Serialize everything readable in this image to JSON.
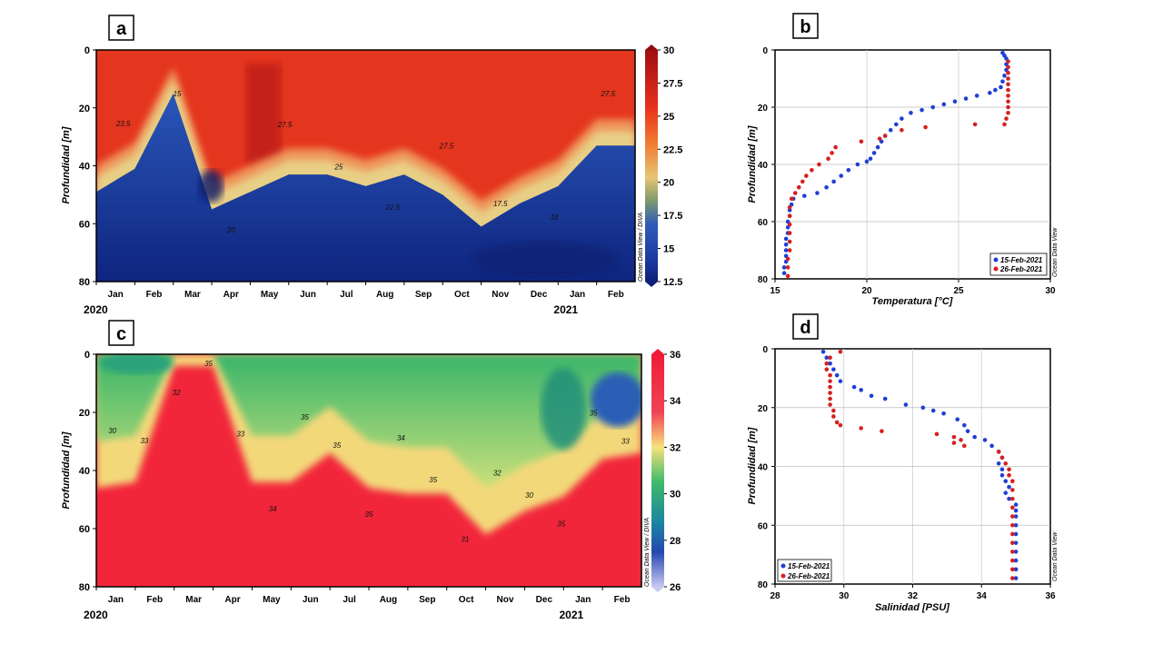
{
  "chart_data": [
    {
      "id": "a",
      "type": "heatmap",
      "panel_label": "a",
      "ylabel": "Profundidad [m]",
      "y_ticks": [
        "0",
        "20",
        "40",
        "60",
        "80"
      ],
      "ylim": [
        0,
        80
      ],
      "x_ticks": [
        "Jan",
        "Feb",
        "Mar",
        "Apr",
        "May",
        "Jun",
        "Jul",
        "Aug",
        "Sep",
        "Oct",
        "Nov",
        "Dec",
        "Jan",
        "Feb"
      ],
      "year_labels": [
        "2020",
        "2021"
      ],
      "colorbar_ticks": [
        "30",
        "27.5",
        "25",
        "22.5",
        "20",
        "17.5",
        "15",
        "12.5"
      ],
      "colorbar_range": [
        12.5,
        30
      ],
      "contour_labels": [
        "23.5",
        "15",
        "20",
        "27.5",
        "25",
        "22.5",
        "27.5",
        "17.5",
        "18",
        "27.5"
      ],
      "watermark": "Ocean Data View / DIVA",
      "thermocline_depth_by_month": [
        46,
        38,
        12,
        52,
        46,
        40,
        40,
        44,
        40,
        47,
        58,
        50,
        44,
        30,
        30
      ]
    },
    {
      "id": "c",
      "type": "heatmap",
      "panel_label": "c",
      "ylabel": "Profundidad [m]",
      "y_ticks": [
        "0",
        "20",
        "40",
        "60",
        "80"
      ],
      "ylim": [
        0,
        80
      ],
      "x_ticks": [
        "Jan",
        "Feb",
        "Mar",
        "Apr",
        "May",
        "Jun",
        "Jul",
        "Aug",
        "Sep",
        "Oct",
        "Nov",
        "Dec",
        "Jan",
        "Feb"
      ],
      "year_labels": [
        "2020",
        "2021"
      ],
      "colorbar_ticks": [
        "36",
        "34",
        "32",
        "30",
        "28",
        "26"
      ],
      "colorbar_range": [
        26,
        36
      ],
      "contour_labels": [
        "30",
        "33",
        "32",
        "35",
        "33",
        "34",
        "35",
        "35",
        "35",
        "34",
        "35",
        "31",
        "32",
        "30",
        "35",
        "35",
        "33"
      ],
      "watermark": "Ocean Data View / DIVA",
      "halocline_depth_by_month": [
        42,
        40,
        0,
        0,
        40,
        40,
        30,
        42,
        44,
        44,
        58,
        50,
        45,
        32,
        30
      ]
    },
    {
      "id": "b",
      "type": "scatter",
      "panel_label": "b",
      "xlabel": "Temperatura [°C]",
      "ylabel": "Profundidad [m]",
      "x_ticks": [
        "15",
        "20",
        "25",
        "30"
      ],
      "y_ticks": [
        "0",
        "20",
        "40",
        "60",
        "80"
      ],
      "xlim": [
        15,
        30
      ],
      "ylim": [
        0,
        80
      ],
      "watermark": "Ocean Data View",
      "series": [
        {
          "name": "15-Feb-2021",
          "color": "#1f3fd6",
          "points": [
            [
              27.4,
              1
            ],
            [
              27.5,
              2
            ],
            [
              27.6,
              3
            ],
            [
              27.6,
              5
            ],
            [
              27.6,
              7
            ],
            [
              27.5,
              9
            ],
            [
              27.4,
              11
            ],
            [
              27.3,
              13
            ],
            [
              27.0,
              14
            ],
            [
              26.7,
              15
            ],
            [
              26.0,
              16
            ],
            [
              25.4,
              17
            ],
            [
              24.8,
              18
            ],
            [
              24.2,
              19
            ],
            [
              23.6,
              20
            ],
            [
              23.0,
              21
            ],
            [
              22.4,
              22
            ],
            [
              21.9,
              24
            ],
            [
              21.6,
              26
            ],
            [
              21.3,
              28
            ],
            [
              21.0,
              30
            ],
            [
              20.8,
              32
            ],
            [
              20.6,
              34
            ],
            [
              20.4,
              36
            ],
            [
              20.2,
              38
            ],
            [
              20.0,
              39
            ],
            [
              19.5,
              40
            ],
            [
              19.0,
              42
            ],
            [
              18.6,
              44
            ],
            [
              18.2,
              46
            ],
            [
              17.8,
              48
            ],
            [
              17.3,
              50
            ],
            [
              16.6,
              51
            ],
            [
              16.0,
              52
            ],
            [
              15.9,
              54
            ],
            [
              15.8,
              56
            ],
            [
              15.8,
              58
            ],
            [
              15.7,
              60
            ],
            [
              15.7,
              62
            ],
            [
              15.7,
              64
            ],
            [
              15.6,
              66
            ],
            [
              15.6,
              68
            ],
            [
              15.6,
              70
            ],
            [
              15.6,
              72
            ],
            [
              15.6,
              74
            ],
            [
              15.5,
              76
            ],
            [
              15.5,
              78
            ]
          ]
        },
        {
          "name": "26-Feb-2021",
          "color": "#d62020",
          "points": [
            [
              27.7,
              4
            ],
            [
              27.7,
              6
            ],
            [
              27.7,
              8
            ],
            [
              27.7,
              10
            ],
            [
              27.7,
              12
            ],
            [
              27.7,
              14
            ],
            [
              27.7,
              16
            ],
            [
              27.7,
              18
            ],
            [
              27.7,
              20
            ],
            [
              27.7,
              22
            ],
            [
              27.6,
              24
            ],
            [
              27.5,
              26
            ],
            [
              25.9,
              26
            ],
            [
              23.2,
              27
            ],
            [
              21.9,
              28
            ],
            [
              21.0,
              30
            ],
            [
              20.7,
              31
            ],
            [
              19.7,
              32
            ],
            [
              18.3,
              34
            ],
            [
              18.1,
              36
            ],
            [
              17.9,
              38
            ],
            [
              17.4,
              40
            ],
            [
              17.0,
              42
            ],
            [
              16.7,
              44
            ],
            [
              16.5,
              46
            ],
            [
              16.3,
              48
            ],
            [
              16.1,
              50
            ],
            [
              15.9,
              52
            ],
            [
              15.8,
              55
            ],
            [
              15.8,
              58
            ],
            [
              15.8,
              61
            ],
            [
              15.8,
              64
            ],
            [
              15.8,
              67
            ],
            [
              15.8,
              70
            ],
            [
              15.7,
              73
            ],
            [
              15.7,
              76
            ],
            [
              15.7,
              79
            ]
          ]
        }
      ]
    },
    {
      "id": "d",
      "type": "scatter",
      "panel_label": "d",
      "xlabel": "Salinidad [PSU]",
      "ylabel": "Profundidad [m]",
      "x_ticks": [
        "28",
        "30",
        "32",
        "34",
        "36"
      ],
      "y_ticks": [
        "0",
        "20",
        "40",
        "60",
        "80"
      ],
      "xlim": [
        28,
        36
      ],
      "ylim": [
        0,
        80
      ],
      "watermark": "Ocean Data View",
      "series": [
        {
          "name": "15-Feb-2021",
          "color": "#1f3fd6",
          "points": [
            [
              29.4,
              1
            ],
            [
              29.5,
              3
            ],
            [
              29.6,
              5
            ],
            [
              29.7,
              7
            ],
            [
              29.8,
              9
            ],
            [
              29.9,
              11
            ],
            [
              30.3,
              13
            ],
            [
              30.5,
              14
            ],
            [
              30.8,
              16
            ],
            [
              31.2,
              17
            ],
            [
              31.8,
              19
            ],
            [
              32.3,
              20
            ],
            [
              32.6,
              21
            ],
            [
              32.9,
              22
            ],
            [
              33.3,
              24
            ],
            [
              33.5,
              26
            ],
            [
              33.6,
              28
            ],
            [
              33.8,
              30
            ],
            [
              34.1,
              31
            ],
            [
              34.3,
              33
            ],
            [
              34.5,
              35
            ],
            [
              34.6,
              37
            ],
            [
              34.5,
              39
            ],
            [
              34.6,
              41
            ],
            [
              34.6,
              43
            ],
            [
              34.7,
              45
            ],
            [
              34.8,
              47
            ],
            [
              34.7,
              49
            ],
            [
              34.8,
              51
            ],
            [
              35.0,
              53
            ],
            [
              35.0,
              55
            ],
            [
              35.0,
              57
            ],
            [
              35.0,
              60
            ],
            [
              35.0,
              63
            ],
            [
              35.0,
              66
            ],
            [
              35.0,
              69
            ],
            [
              35.0,
              72
            ],
            [
              35.0,
              75
            ],
            [
              35.0,
              78
            ]
          ]
        },
        {
          "name": "26-Feb-2021",
          "color": "#d62020",
          "points": [
            [
              29.9,
              1
            ],
            [
              29.6,
              3
            ],
            [
              29.5,
              5
            ],
            [
              29.5,
              7
            ],
            [
              29.6,
              9
            ],
            [
              29.6,
              11
            ],
            [
              29.6,
              13
            ],
            [
              29.6,
              15
            ],
            [
              29.6,
              17
            ],
            [
              29.6,
              19
            ],
            [
              29.7,
              21
            ],
            [
              29.7,
              23
            ],
            [
              29.8,
              25
            ],
            [
              29.9,
              26
            ],
            [
              30.5,
              27
            ],
            [
              31.1,
              28
            ],
            [
              32.7,
              29
            ],
            [
              33.2,
              30
            ],
            [
              33.2,
              32
            ],
            [
              33.5,
              33
            ],
            [
              33.4,
              31
            ],
            [
              34.5,
              35
            ],
            [
              34.6,
              37
            ],
            [
              34.7,
              39
            ],
            [
              34.8,
              41
            ],
            [
              34.8,
              43
            ],
            [
              34.9,
              45
            ],
            [
              34.9,
              48
            ],
            [
              34.9,
              51
            ],
            [
              34.9,
              54
            ],
            [
              34.9,
              57
            ],
            [
              34.9,
              60
            ],
            [
              34.9,
              63
            ],
            [
              34.9,
              66
            ],
            [
              34.9,
              69
            ],
            [
              34.9,
              72
            ],
            [
              34.9,
              75
            ],
            [
              34.9,
              78
            ]
          ]
        }
      ]
    }
  ]
}
